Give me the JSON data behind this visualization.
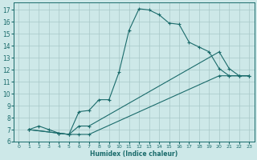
{
  "xlabel": "Humidex (Indice chaleur)",
  "bg_color": "#cde8e8",
  "grid_color": "#a8c8c8",
  "line_color": "#1a6b6b",
  "xlim": [
    -0.5,
    23.5
  ],
  "ylim": [
    6,
    17.6
  ],
  "xticks": [
    0,
    1,
    2,
    3,
    4,
    5,
    6,
    7,
    8,
    9,
    10,
    11,
    12,
    13,
    14,
    15,
    16,
    17,
    18,
    19,
    20,
    21,
    22,
    23
  ],
  "yticks": [
    6,
    7,
    8,
    9,
    10,
    11,
    12,
    13,
    14,
    15,
    16,
    17
  ],
  "series": [
    {
      "x": [
        1,
        2,
        3,
        4,
        5,
        6,
        7,
        8,
        9,
        10,
        11,
        12,
        13,
        14,
        15,
        16,
        17,
        18,
        19,
        20,
        21,
        22,
        23
      ],
      "y": [
        7.0,
        7.3,
        7.0,
        6.7,
        6.6,
        8.5,
        8.6,
        9.5,
        9.5,
        11.8,
        15.3,
        17.1,
        17.0,
        16.6,
        15.9,
        15.8,
        14.3,
        13.9,
        13.5,
        12.1,
        11.5,
        11.5,
        11.5
      ]
    },
    {
      "x": [
        1,
        4,
        5,
        6,
        7,
        20,
        21,
        22,
        23
      ],
      "y": [
        7.0,
        6.7,
        6.6,
        7.3,
        7.3,
        13.5,
        12.1,
        11.5,
        11.5
      ]
    },
    {
      "x": [
        1,
        4,
        5,
        6,
        7,
        20,
        21,
        22,
        23
      ],
      "y": [
        7.0,
        6.7,
        6.6,
        6.6,
        6.6,
        11.5,
        11.5,
        11.5,
        11.5
      ]
    }
  ]
}
